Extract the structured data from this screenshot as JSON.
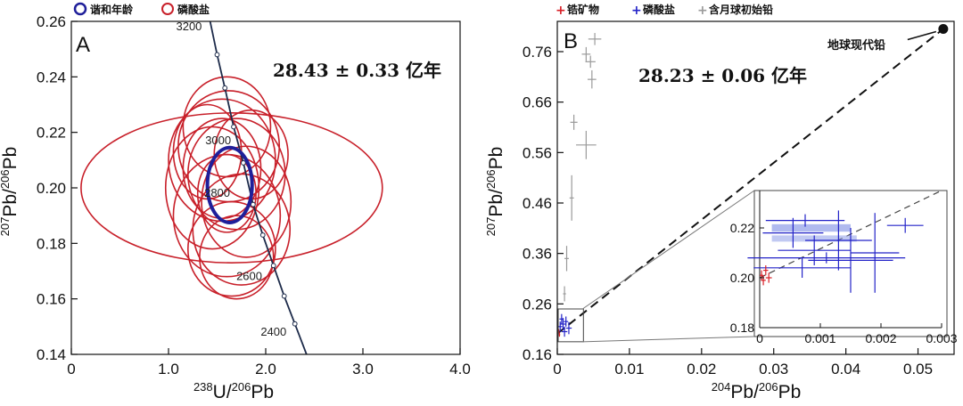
{
  "chart_data": [
    {
      "panel": "A",
      "type": "scatter",
      "subtype": "concordia-error-ellipses",
      "legend": [
        "谐和年龄",
        "磷酸盐"
      ],
      "legend_placement": "top-left",
      "annotation": "28.43 ± 0.33 亿年",
      "xlabel_parts": [
        "238",
        "U/",
        "206",
        "Pb"
      ],
      "ylabel_parts": [
        "207",
        "Pb/",
        "206",
        "Pb"
      ],
      "xlim": [
        0,
        4.0
      ],
      "ylim": [
        0.14,
        0.26
      ],
      "xticks": [
        0,
        1.0,
        2.0,
        3.0,
        4.0
      ],
      "xtick_labels": [
        "0",
        "1.0",
        "2.0",
        "3.0",
        "4.0"
      ],
      "yticks": [
        0.14,
        0.16,
        0.18,
        0.2,
        0.22,
        0.24,
        0.26
      ],
      "ytick_labels": [
        "0.14",
        "0.16",
        "0.18",
        "0.20",
        "0.22",
        "0.24",
        "0.26"
      ],
      "concordia_ages": [
        "3200",
        "3000",
        "2800",
        "2600",
        "2400"
      ],
      "concordia_points": [
        [
          1.38,
          0.268
        ],
        [
          1.5,
          0.248
        ],
        [
          1.58,
          0.236
        ],
        [
          1.67,
          0.222
        ],
        [
          1.77,
          0.209
        ],
        [
          1.87,
          0.194
        ],
        [
          1.97,
          0.183
        ],
        [
          2.08,
          0.172
        ],
        [
          2.19,
          0.161
        ],
        [
          2.3,
          0.151
        ],
        [
          2.42,
          0.14
        ]
      ],
      "concordia_age": {
        "x": 1.63,
        "y": 0.201,
        "rx": 0.23,
        "ry": 0.0135
      },
      "phosphate_ellipses": [
        {
          "x": 1.65,
          "y": 0.2,
          "rx": 1.55,
          "ry": 0.027
        },
        {
          "x": 1.6,
          "y": 0.222,
          "rx": 0.45,
          "ry": 0.018
        },
        {
          "x": 1.62,
          "y": 0.215,
          "rx": 0.52,
          "ry": 0.02
        },
        {
          "x": 1.55,
          "y": 0.21,
          "rx": 0.55,
          "ry": 0.022
        },
        {
          "x": 1.7,
          "y": 0.205,
          "rx": 0.5,
          "ry": 0.02
        },
        {
          "x": 1.45,
          "y": 0.2,
          "rx": 0.48,
          "ry": 0.022
        },
        {
          "x": 1.8,
          "y": 0.195,
          "rx": 0.46,
          "ry": 0.02
        },
        {
          "x": 1.6,
          "y": 0.19,
          "rx": 0.55,
          "ry": 0.022
        },
        {
          "x": 1.75,
          "y": 0.185,
          "rx": 0.5,
          "ry": 0.02
        },
        {
          "x": 1.65,
          "y": 0.178,
          "rx": 0.45,
          "ry": 0.017
        },
        {
          "x": 1.55,
          "y": 0.207,
          "rx": 0.4,
          "ry": 0.018
        },
        {
          "x": 1.85,
          "y": 0.212,
          "rx": 0.38,
          "ry": 0.016
        },
        {
          "x": 1.4,
          "y": 0.213,
          "rx": 0.35,
          "ry": 0.017
        },
        {
          "x": 1.6,
          "y": 0.198,
          "rx": 0.3,
          "ry": 0.014
        },
        {
          "x": 1.7,
          "y": 0.175,
          "rx": 0.38,
          "ry": 0.015
        }
      ],
      "colors": {
        "concordia_age": "#1f1f9a",
        "phosphate": "#c8202a"
      }
    },
    {
      "panel": "B",
      "type": "scatter",
      "legend": [
        "锆矿物",
        "磷酸盐",
        "含月球初始铅"
      ],
      "legend_placement": "top-left",
      "annotation": "28.23 ± 0.06 亿年",
      "endpoint_label": "地球现代铅",
      "xlabel_parts": [
        "204",
        "Pb/",
        "206",
        "Pb"
      ],
      "ylabel_parts": [
        "207",
        "Pb/",
        "206",
        "Pb"
      ],
      "xlim": [
        0,
        0.055
      ],
      "ylim": [
        0.16,
        0.82
      ],
      "xticks": [
        0,
        0.01,
        0.02,
        0.03,
        0.04,
        0.05
      ],
      "xtick_labels": [
        "0",
        "0.01",
        "0.02",
        "0.03",
        "0.04",
        "0.05"
      ],
      "yticks": [
        0.16,
        0.26,
        0.36,
        0.46,
        0.56,
        0.66,
        0.76
      ],
      "ytick_labels": [
        "0.16",
        "0.26",
        "0.36",
        "0.46",
        "0.56",
        "0.66",
        "0.76"
      ],
      "regression_line": [
        [
          0,
          0.201
        ],
        [
          0.0535,
          0.805
        ]
      ],
      "modern_lead_point": {
        "x": 0.0535,
        "y": 0.805
      },
      "initial_lead_points": [
        {
          "x": 0.0052,
          "y": 0.785,
          "ex": 0.0009,
          "ey": 0.012
        },
        {
          "x": 0.004,
          "y": 0.755,
          "ex": 0.0006,
          "ey": 0.014
        },
        {
          "x": 0.0046,
          "y": 0.74,
          "ex": 0.0007,
          "ey": 0.012
        },
        {
          "x": 0.0048,
          "y": 0.705,
          "ex": 0.0006,
          "ey": 0.018
        },
        {
          "x": 0.0023,
          "y": 0.62,
          "ex": 0.0005,
          "ey": 0.015
        },
        {
          "x": 0.004,
          "y": 0.575,
          "ex": 0.0014,
          "ey": 0.028
        },
        {
          "x": 0.002,
          "y": 0.47,
          "ex": 0.0003,
          "ey": 0.045
        },
        {
          "x": 0.0013,
          "y": 0.35,
          "ex": 0.0003,
          "ey": 0.025
        },
        {
          "x": 0.001,
          "y": 0.28,
          "ex": 0.0002,
          "ey": 0.015
        }
      ],
      "phosphate_points": [
        {
          "x": 0.0004,
          "y": 0.215,
          "ex": 0.0003,
          "ey": 0.01
        },
        {
          "x": 0.0008,
          "y": 0.22,
          "ex": 0.0004,
          "ey": 0.012
        },
        {
          "x": 0.0012,
          "y": 0.225,
          "ex": 0.0003,
          "ey": 0.01
        },
        {
          "x": 0.0016,
          "y": 0.212,
          "ex": 0.0004,
          "ey": 0.012
        },
        {
          "x": 0.0006,
          "y": 0.23,
          "ex": 0.0003,
          "ey": 0.01
        },
        {
          "x": 0.001,
          "y": 0.205,
          "ex": 0.0004,
          "ey": 0.01
        }
      ],
      "zircon_points": [
        {
          "x": 0.0001,
          "y": 0.201,
          "ex": 0.0001,
          "ey": 0.004
        },
        {
          "x": 0.0002,
          "y": 0.206,
          "ex": 0.0001,
          "ey": 0.004
        },
        {
          "x": 0.0003,
          "y": 0.199,
          "ex": 0.0001,
          "ey": 0.004
        }
      ],
      "inset": {
        "xlim": [
          0,
          0.003
        ],
        "ylim": [
          0.18,
          0.235
        ],
        "xtick_labels": [
          "0",
          "0.001",
          "0.002",
          "0.003"
        ],
        "xticks": [
          0,
          0.001,
          0.002,
          0.003
        ],
        "ytick_labels": [
          "0.18",
          "0.20",
          "0.22"
        ],
        "yticks": [
          0.18,
          0.2,
          0.22
        ],
        "regression_line": [
          [
            0,
            0.2
          ],
          [
            0.003,
            0.235
          ]
        ],
        "phosphate_points": [
          {
            "x": 0.00075,
            "y": 0.223,
            "ex": 0.00065,
            "ey": 0.0025
          },
          {
            "x": 0.0013,
            "y": 0.215,
            "ex": 0.00055,
            "ey": 0.012
          },
          {
            "x": 0.0009,
            "y": 0.211,
            "ex": 0.0006,
            "ey": 0.006
          },
          {
            "x": 0.0015,
            "y": 0.207,
            "ex": 0.0007,
            "ey": 0.013
          },
          {
            "x": 0.0007,
            "y": 0.204,
            "ex": 0.0008,
            "ey": 0.004
          },
          {
            "x": 0.0011,
            "y": 0.208,
            "ex": 0.0013,
            "ey": 0.0022
          },
          {
            "x": 0.00055,
            "y": 0.218,
            "ex": 0.0005,
            "ey": 0.006
          },
          {
            "x": 0.0019,
            "y": 0.21,
            "ex": 0.0004,
            "ey": 0.016
          },
          {
            "x": 0.0024,
            "y": 0.221,
            "ex": 0.0003,
            "ey": 0.003
          }
        ],
        "zircon_points": [
          {
            "x": 3e-05,
            "y": 0.201,
            "ex": 3e-05,
            "ey": 0.002
          },
          {
            "x": 6e-05,
            "y": 0.199,
            "ex": 4e-05,
            "ey": 0.002
          },
          {
            "x": 0.0001,
            "y": 0.203,
            "ex": 4e-05,
            "ey": 0.002
          },
          {
            "x": 0.00015,
            "y": 0.2,
            "ex": 5e-05,
            "ey": 0.002
          }
        ]
      },
      "colors": {
        "zircon": "#d81f26",
        "phosphate": "#2323c8",
        "initial_lead": "#9a9a9a",
        "highlight": "#8e9ce8"
      }
    }
  ]
}
